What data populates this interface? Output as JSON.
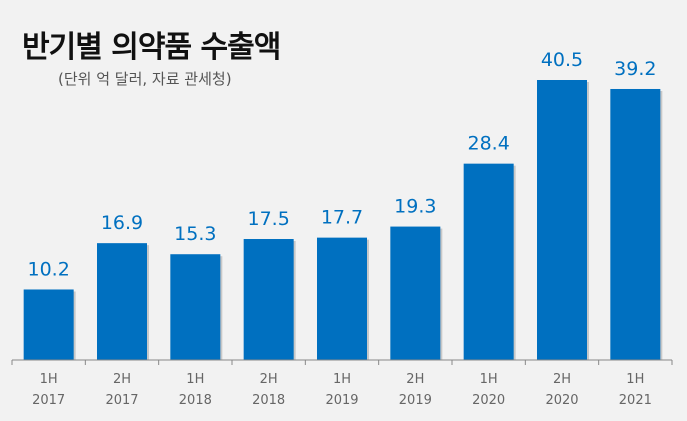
{
  "chart_data": {
    "type": "bar",
    "title": "반기별 의약품 수출액",
    "subtitle": "(단위 억 달러, 자료 관세청)",
    "categories": [
      [
        "1H",
        "2017"
      ],
      [
        "2H",
        "2017"
      ],
      [
        "1H",
        "2018"
      ],
      [
        "2H",
        "2018"
      ],
      [
        "1H",
        "2019"
      ],
      [
        "2H",
        "2019"
      ],
      [
        "1H",
        "2020"
      ],
      [
        "2H",
        "2020"
      ],
      [
        "1H",
        "2021"
      ]
    ],
    "values": [
      10.2,
      16.9,
      15.3,
      17.5,
      17.7,
      19.3,
      28.4,
      40.5,
      39.2
    ],
    "data_labels": [
      "10.2",
      "16.9",
      "15.3",
      "17.5",
      "17.7",
      "19.3",
      "28.4",
      "40.5",
      "39.2"
    ],
    "ylim": [
      0,
      44
    ],
    "grid": false,
    "colors": {
      "bar": "#0070c0",
      "label": "#0070c0",
      "axis": "#888888",
      "tick_text": "#666666"
    }
  }
}
